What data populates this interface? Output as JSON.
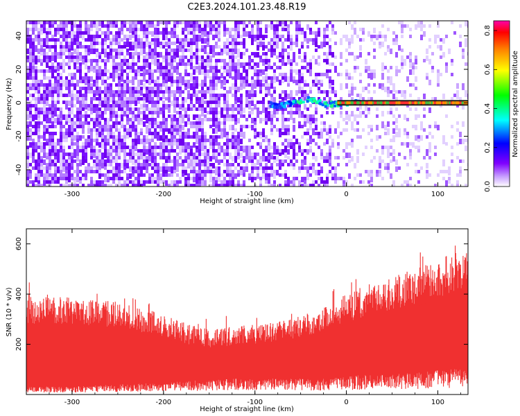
{
  "title": "C2E3.2024.101.23.48.R19",
  "chart_data": [
    {
      "type": "heatmap",
      "xlabel": "Height of straight line (km)",
      "ylabel": "Frequency (Hz)",
      "xlim": [
        -350,
        133
      ],
      "ylim": [
        -50,
        49
      ],
      "xticks": [
        "-300",
        "-200",
        "-100",
        "0",
        "100"
      ],
      "xtick_values": [
        -300,
        -200,
        -100,
        0,
        100
      ],
      "yticks": [
        "-40",
        "-20",
        "0",
        "20",
        "40"
      ],
      "ytick_values": [
        -40,
        -20,
        0,
        20,
        40
      ],
      "colorbar": {
        "label": "Normalized spectral amplitude",
        "range": [
          0,
          0.85
        ],
        "ticks": [
          "0.0",
          "0.2",
          "0.4",
          "0.6",
          "0.8"
        ],
        "tick_values": [
          0,
          0.2,
          0.4,
          0.6,
          0.8
        ],
        "colormap": [
          "#ffffff",
          "#7f00ff",
          "#0000ff",
          "#00ffff",
          "#00ff00",
          "#ffff00",
          "#ff7f00",
          "#ff0000",
          "#ff00aa"
        ]
      },
      "features": {
        "dense_noise_region_x": [
          -350,
          -10
        ],
        "sparse_noise_region_x": [
          -10,
          133
        ],
        "signal_line": {
          "frequency": 0,
          "x_start": -10,
          "x_end": 133,
          "amplitude": 0.8
        },
        "signal_wiggle": {
          "x_start": -85,
          "x_end": 15,
          "frequency_range": [
            -5,
            5
          ],
          "amplitude": 0.35
        }
      }
    },
    {
      "type": "area",
      "xlabel": "Height of straight line (km)",
      "ylabel": "SNR (10 * v/v)",
      "xlim": [
        -350,
        133
      ],
      "ylim": [
        0,
        660
      ],
      "xticks": [
        "-300",
        "-200",
        "-100",
        "0",
        "100"
      ],
      "xtick_values": [
        -300,
        -200,
        -100,
        0,
        100
      ],
      "yticks": [
        "200",
        "400",
        "600"
      ],
      "ytick_values": [
        200,
        400,
        600
      ],
      "color": "#f03030",
      "envelope": {
        "x": [
          -350,
          -300,
          -250,
          -200,
          -175,
          -150,
          -125,
          -100,
          -75,
          -50,
          -25,
          0,
          25,
          50,
          75,
          100,
          133
        ],
        "upper": [
          390,
          390,
          370,
          320,
          280,
          260,
          270,
          280,
          290,
          310,
          350,
          400,
          440,
          470,
          500,
          540,
          580
        ],
        "lower": [
          20,
          20,
          25,
          30,
          35,
          35,
          40,
          40,
          40,
          40,
          40,
          45,
          50,
          50,
          55,
          60,
          70
        ]
      }
    }
  ]
}
